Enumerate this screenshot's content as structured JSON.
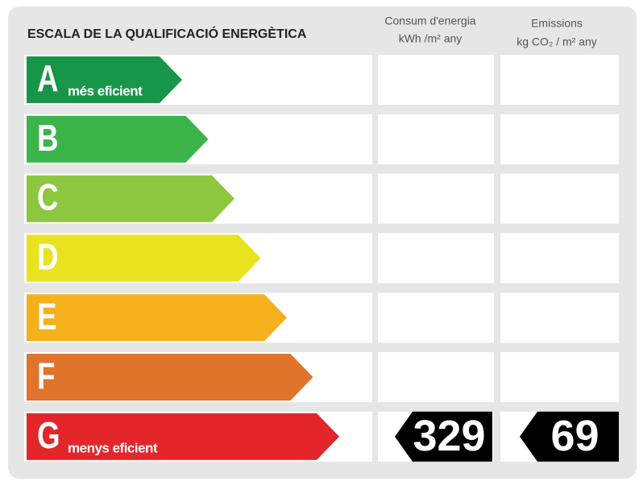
{
  "header": {
    "title": "ESCALA DE LA QUALIFICACIÓ ENERGÈTICA",
    "energy_column": {
      "title": "Consum d'energia",
      "unit": "kWh /m² any"
    },
    "emissions_column": {
      "title": "Emissions",
      "unit": "kg CO₂ / m² any"
    }
  },
  "ratings": [
    {
      "letter": "A",
      "note": "més eficient",
      "color": "#17964a"
    },
    {
      "letter": "B",
      "color": "#3bb54a"
    },
    {
      "letter": "C",
      "color": "#8dc63f"
    },
    {
      "letter": "D",
      "color": "#e9e21f"
    },
    {
      "letter": "E",
      "color": "#f4b11c"
    },
    {
      "letter": "F",
      "color": "#e0742a"
    },
    {
      "letter": "G",
      "note": "menys eficient",
      "color": "#e2262a",
      "energy": 329,
      "emissions": 69
    }
  ]
}
